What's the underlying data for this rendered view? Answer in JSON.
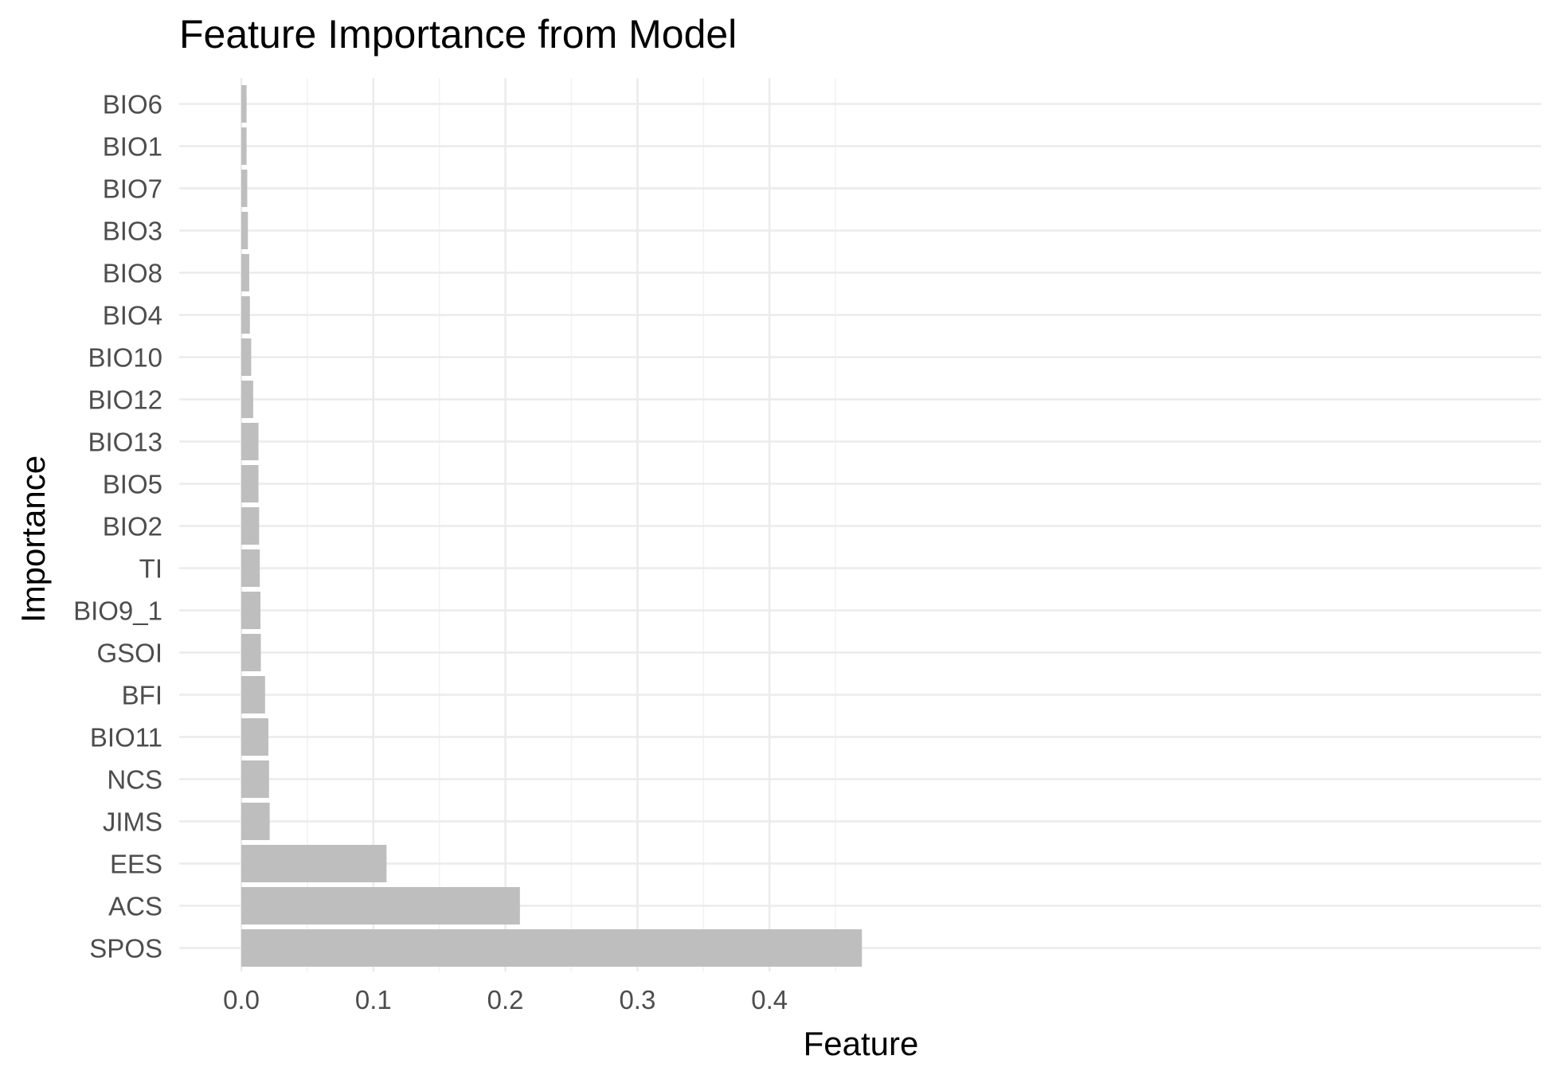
{
  "chart_data": {
    "type": "bar",
    "orientation": "horizontal",
    "title": "Feature Importance from Model",
    "xlabel": "Feature",
    "ylabel": "Importance",
    "xlim": [
      0,
      0.47
    ],
    "x_ticks": [
      "0.0",
      "0.1",
      "0.2",
      "0.3",
      "0.4"
    ],
    "grid": true,
    "legend": "none",
    "bar_color": "#bebebe",
    "categories": [
      "BIO6",
      "BIO1",
      "BIO7",
      "BIO3",
      "BIO8",
      "BIO4",
      "BIO10",
      "BIO12",
      "BIO13",
      "BIO5",
      "BIO2",
      "TI",
      "BIO9_1",
      "GSOI",
      "BFI",
      "BIO11",
      "NCS",
      "JIMS",
      "EES",
      "ACS",
      "SPOS"
    ],
    "values": [
      0.004,
      0.004,
      0.0045,
      0.005,
      0.006,
      0.0065,
      0.0075,
      0.009,
      0.013,
      0.013,
      0.0135,
      0.014,
      0.0145,
      0.0148,
      0.018,
      0.0205,
      0.021,
      0.0215,
      0.11,
      0.211,
      0.47
    ]
  }
}
